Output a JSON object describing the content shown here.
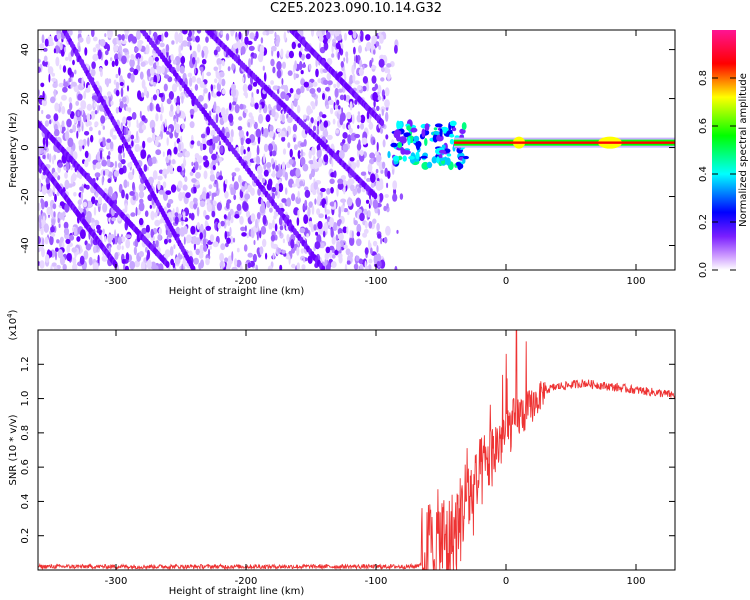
{
  "title": "C2E5.2023.090.10.14.G32",
  "chart_data": [
    {
      "type": "heatmap",
      "xlabel": "Height of straight line (km)",
      "ylabel": "Frequency (Hz)",
      "xlim": [
        -360,
        130
      ],
      "ylim": [
        -50,
        48
      ],
      "xticks": [
        -300,
        -200,
        -100,
        0,
        100
      ],
      "yticks": [
        -40,
        -20,
        0,
        20,
        40
      ],
      "xtick_labels": [
        "-300",
        "-200",
        "-100",
        "0",
        "100"
      ],
      "ytick_labels": [
        "-40",
        "-20",
        "0",
        "20",
        "40"
      ],
      "colorbar": {
        "label": "Normalized spectral amplitude",
        "range": [
          0,
          1
        ],
        "ticks": [
          0.0,
          0.2,
          0.4,
          0.6,
          0.8
        ],
        "tick_labels": [
          "0.0",
          "0.2",
          "0.4",
          "0.6",
          "0.8"
        ],
        "colors": [
          "#ffffff",
          "#7a1fff",
          "#0000ff",
          "#00ffff",
          "#00ff00",
          "#ffff00",
          "#ff0000",
          "#ff1493"
        ]
      },
      "features": {
        "noise_region_x": [
          -360,
          -90
        ],
        "signal_line_freq": 2,
        "signal_line_x": [
          -40,
          130
        ]
      }
    },
    {
      "type": "line",
      "xlabel": "Height of straight line (km)",
      "ylabel": "SNR (10 * v/v)",
      "y_multiplier": "(x10^4)",
      "xlim": [
        -360,
        130
      ],
      "ylim": [
        0,
        1.4
      ],
      "xticks": [
        -300,
        -200,
        -100,
        0,
        100
      ],
      "yticks": [
        0.2,
        0.4,
        0.6,
        0.8,
        1.0,
        1.2
      ],
      "xtick_labels": [
        "-300",
        "-200",
        "-100",
        "0",
        "100"
      ],
      "ytick_labels": [
        "0.2",
        "0.4",
        "0.6",
        "0.8",
        "1.0",
        "1.2"
      ],
      "color": "#ee3333",
      "series": [
        {
          "x": [
            -360,
            -300,
            -200,
            -100,
            -70,
            -62,
            -55,
            -50,
            -45,
            -40,
            -35,
            -30,
            -25,
            -20,
            -15,
            -10,
            -5,
            0,
            5,
            10,
            15,
            20,
            25,
            30,
            40,
            50,
            60,
            70,
            80,
            90,
            100,
            110,
            120,
            130
          ],
          "values": [
            0.02,
            0.02,
            0.02,
            0.02,
            0.02,
            0.05,
            0.12,
            0.18,
            0.15,
            0.2,
            0.3,
            0.45,
            0.42,
            0.55,
            0.62,
            0.68,
            0.75,
            0.8,
            0.85,
            0.9,
            0.92,
            0.96,
            1.0,
            1.05,
            1.07,
            1.08,
            1.09,
            1.08,
            1.07,
            1.06,
            1.05,
            1.04,
            1.03,
            1.02
          ]
        }
      ]
    }
  ]
}
